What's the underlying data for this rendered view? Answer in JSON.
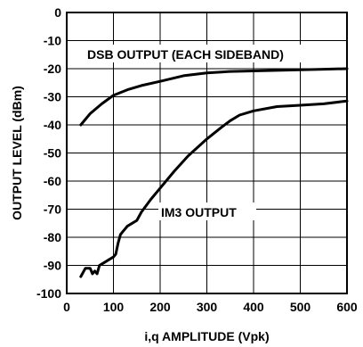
{
  "chart_data": {
    "type": "line",
    "xlabel": "i,q AMPLITUDE (Vpk)",
    "ylabel": "OUTPUT LEVEL (dBm)",
    "xlim": [
      0,
      600
    ],
    "ylim": [
      -100,
      0
    ],
    "x_ticks": [
      0,
      100,
      200,
      300,
      400,
      500,
      600
    ],
    "y_ticks": [
      0,
      -10,
      -20,
      -30,
      -40,
      -50,
      -60,
      -70,
      -80,
      -90,
      -100
    ],
    "grid": true,
    "series": [
      {
        "name": "DSB OUTPUT (EACH SIDEBAND)",
        "x": [
          30,
          50,
          75,
          100,
          130,
          160,
          200,
          250,
          300,
          350,
          400,
          450,
          500,
          550,
          600
        ],
        "y": [
          -40,
          -36,
          -32.5,
          -29.5,
          -27.5,
          -26,
          -24.5,
          -22.5,
          -21.5,
          -21,
          -20.8,
          -20.6,
          -20.4,
          -20.2,
          -20
        ]
      },
      {
        "name": "IM3 OUTPUT",
        "x": [
          30,
          40,
          50,
          55,
          60,
          65,
          70,
          80,
          90,
          100,
          105,
          110,
          115,
          120,
          130,
          140,
          150,
          160,
          180,
          200,
          230,
          260,
          300,
          330,
          350,
          370,
          400,
          450,
          500,
          550,
          600
        ],
        "y": [
          -94,
          -91,
          -91,
          -93,
          -92,
          -93,
          -90,
          -89,
          -88,
          -87,
          -86,
          -82,
          -79,
          -78,
          -76,
          -75,
          -74,
          -71,
          -66.5,
          -62.5,
          -56.5,
          -51,
          -45,
          -41,
          -38.5,
          -36.5,
          -35,
          -33.5,
          -33,
          -32.5,
          -31.5
        ]
      }
    ],
    "annotations": [
      "DSB OUTPUT (EACH SIDEBAND)",
      "IM3 OUTPUT"
    ]
  }
}
